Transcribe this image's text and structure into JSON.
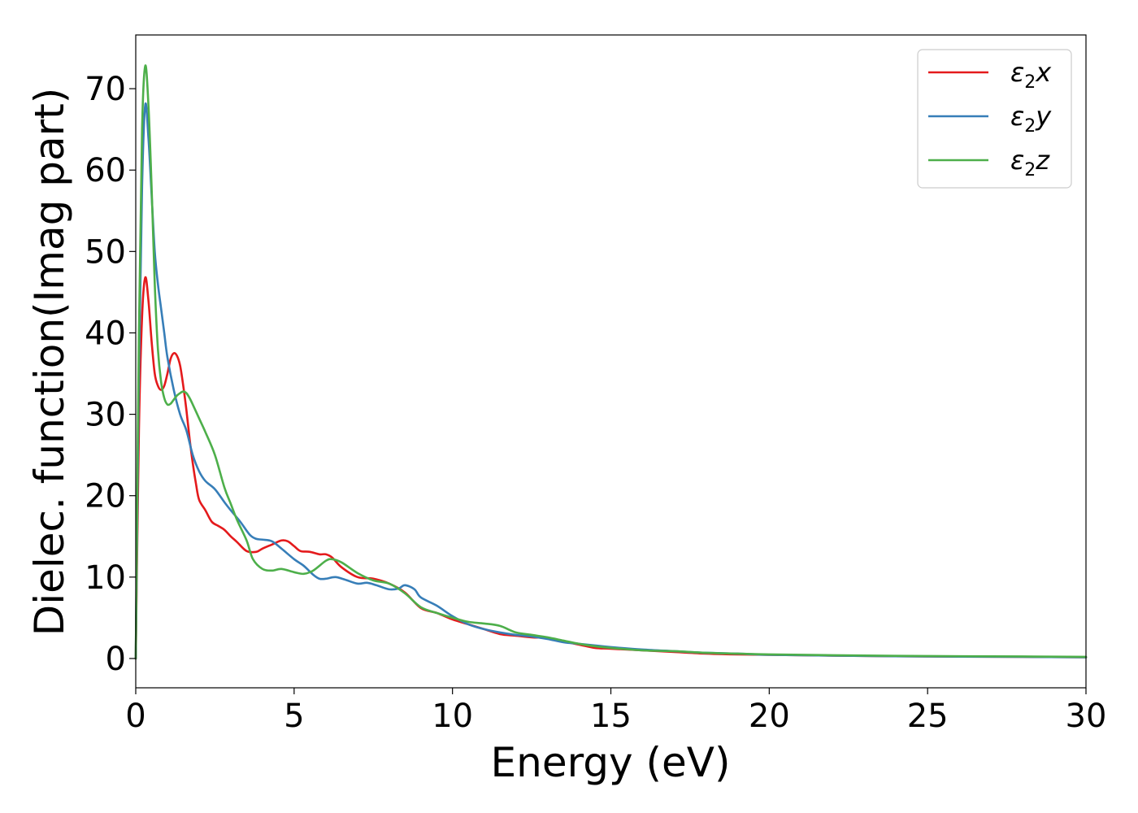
{
  "chart_data": {
    "type": "line",
    "xlabel": "Energy (eV)",
    "ylabel": "Dielec. function(Imag part)",
    "xlim": [
      0,
      30
    ],
    "ylim": [
      -3.6,
      76.6
    ],
    "xticks": [
      0,
      5,
      10,
      15,
      20,
      25,
      30
    ],
    "yticks": [
      0,
      10,
      20,
      30,
      40,
      50,
      60,
      70
    ],
    "grid": false,
    "legend_position": "top-right",
    "series": [
      {
        "name": "ε2x",
        "label_main": "ε",
        "label_sub": "2",
        "label_tail": "x",
        "color": "#e41a1c",
        "x": [
          0,
          0.1,
          0.2,
          0.3,
          0.4,
          0.5,
          0.6,
          0.7,
          0.8,
          0.9,
          1.0,
          1.1,
          1.2,
          1.3,
          1.4,
          1.5,
          1.6,
          1.7,
          1.8,
          1.9,
          2.0,
          2.2,
          2.4,
          2.6,
          2.8,
          3.0,
          3.2,
          3.5,
          3.8,
          4.0,
          4.3,
          4.6,
          4.8,
          5.0,
          5.2,
          5.5,
          5.8,
          6.0,
          6.2,
          6.5,
          7.0,
          7.5,
          8.0,
          8.5,
          9.0,
          9.5,
          10.0,
          10.5,
          11.0,
          11.5,
          12.0,
          12.5,
          13.0,
          13.5,
          14.0,
          14.5,
          15.0,
          16.0,
          17.0,
          18.0,
          19.0,
          20.0,
          22.0,
          25.0,
          28.0,
          30.0
        ],
        "values": [
          0,
          28,
          42,
          46.8,
          44,
          39,
          35,
          33.5,
          33,
          33.5,
          35,
          36.8,
          37.5,
          37.2,
          36,
          33.5,
          30.5,
          27,
          24,
          21.5,
          19.5,
          18.2,
          16.8,
          16.3,
          15.8,
          15,
          14.3,
          13.2,
          13.1,
          13.5,
          14,
          14.5,
          14.4,
          13.8,
          13.2,
          13.1,
          12.8,
          12.8,
          12.4,
          11.2,
          10,
          9.8,
          9.2,
          8.1,
          6.2,
          5.6,
          4.8,
          4.2,
          3.6,
          3.0,
          2.8,
          2.6,
          2.5,
          2.1,
          1.7,
          1.3,
          1.2,
          1.0,
          0.8,
          0.6,
          0.5,
          0.45,
          0.35,
          0.25,
          0.2,
          0.15
        ]
      },
      {
        "name": "ε2y",
        "label_main": "ε",
        "label_sub": "2",
        "label_tail": "y",
        "color": "#377eb8",
        "x": [
          0,
          0.1,
          0.2,
          0.3,
          0.4,
          0.5,
          0.6,
          0.7,
          0.8,
          0.9,
          1.0,
          1.2,
          1.4,
          1.6,
          1.8,
          2.0,
          2.2,
          2.5,
          2.8,
          3.0,
          3.3,
          3.6,
          3.8,
          4.0,
          4.3,
          4.6,
          5.0,
          5.3,
          5.6,
          5.8,
          6.0,
          6.3,
          6.6,
          7.0,
          7.3,
          7.6,
          8.0,
          8.3,
          8.5,
          8.8,
          9.0,
          9.5,
          10.0,
          10.5,
          11.0,
          11.5,
          12.0,
          12.5,
          13.0,
          13.5,
          14.0,
          14.5,
          15.0,
          16.0,
          17.0,
          18.0,
          19.0,
          20.0,
          22.0,
          25.0,
          28.0,
          30.0
        ],
        "values": [
          0,
          35,
          58,
          68,
          64,
          57,
          50,
          46,
          43,
          40,
          37,
          33,
          30,
          28,
          25,
          23,
          21.8,
          20.8,
          19.2,
          18.2,
          16.8,
          15.2,
          14.7,
          14.6,
          14.4,
          13.5,
          12.2,
          11.4,
          10.3,
          9.8,
          9.8,
          10,
          9.7,
          9.2,
          9.3,
          9,
          8.5,
          8.6,
          9,
          8.5,
          7.5,
          6.5,
          5.2,
          4.2,
          3.6,
          3.2,
          2.9,
          2.7,
          2.4,
          2.0,
          1.8,
          1.6,
          1.4,
          1.1,
          0.9,
          0.7,
          0.6,
          0.45,
          0.35,
          0.25,
          0.2,
          0.15
        ]
      },
      {
        "name": "ε2z",
        "label_main": "ε",
        "label_sub": "2",
        "label_tail": "z",
        "color": "#4daf4a",
        "x": [
          0,
          0.1,
          0.2,
          0.3,
          0.4,
          0.5,
          0.6,
          0.7,
          0.8,
          0.9,
          1.0,
          1.1,
          1.2,
          1.3,
          1.4,
          1.5,
          1.6,
          1.7,
          1.8,
          2.0,
          2.2,
          2.5,
          2.8,
          3.0,
          3.2,
          3.5,
          3.7,
          4.0,
          4.3,
          4.6,
          5.0,
          5.3,
          5.6,
          6.0,
          6.2,
          6.5,
          7.0,
          7.5,
          8.0,
          8.5,
          9.0,
          9.5,
          10.0,
          10.5,
          11.0,
          11.5,
          12.0,
          12.5,
          13.0,
          13.5,
          14.0,
          14.5,
          15.0,
          16.0,
          17.0,
          18.0,
          19.0,
          20.0,
          22.0,
          25.0,
          28.0,
          30.0
        ],
        "values": [
          0,
          40,
          65,
          72.8,
          68,
          58,
          46,
          38,
          34,
          32,
          31.2,
          31.3,
          31.8,
          32.3,
          32.6,
          32.8,
          32.6,
          32,
          31.2,
          29.5,
          27.8,
          25,
          21,
          19,
          17,
          14.5,
          12.2,
          11,
          10.8,
          11,
          10.6,
          10.4,
          10.8,
          12,
          12.2,
          11.8,
          10.5,
          9.6,
          9.2,
          8,
          6.3,
          5.6,
          5,
          4.5,
          4.3,
          4,
          3.2,
          2.9,
          2.6,
          2.2,
          1.8,
          1.5,
          1.3,
          1.0,
          0.9,
          0.7,
          0.6,
          0.5,
          0.4,
          0.3,
          0.25,
          0.2
        ]
      }
    ]
  }
}
